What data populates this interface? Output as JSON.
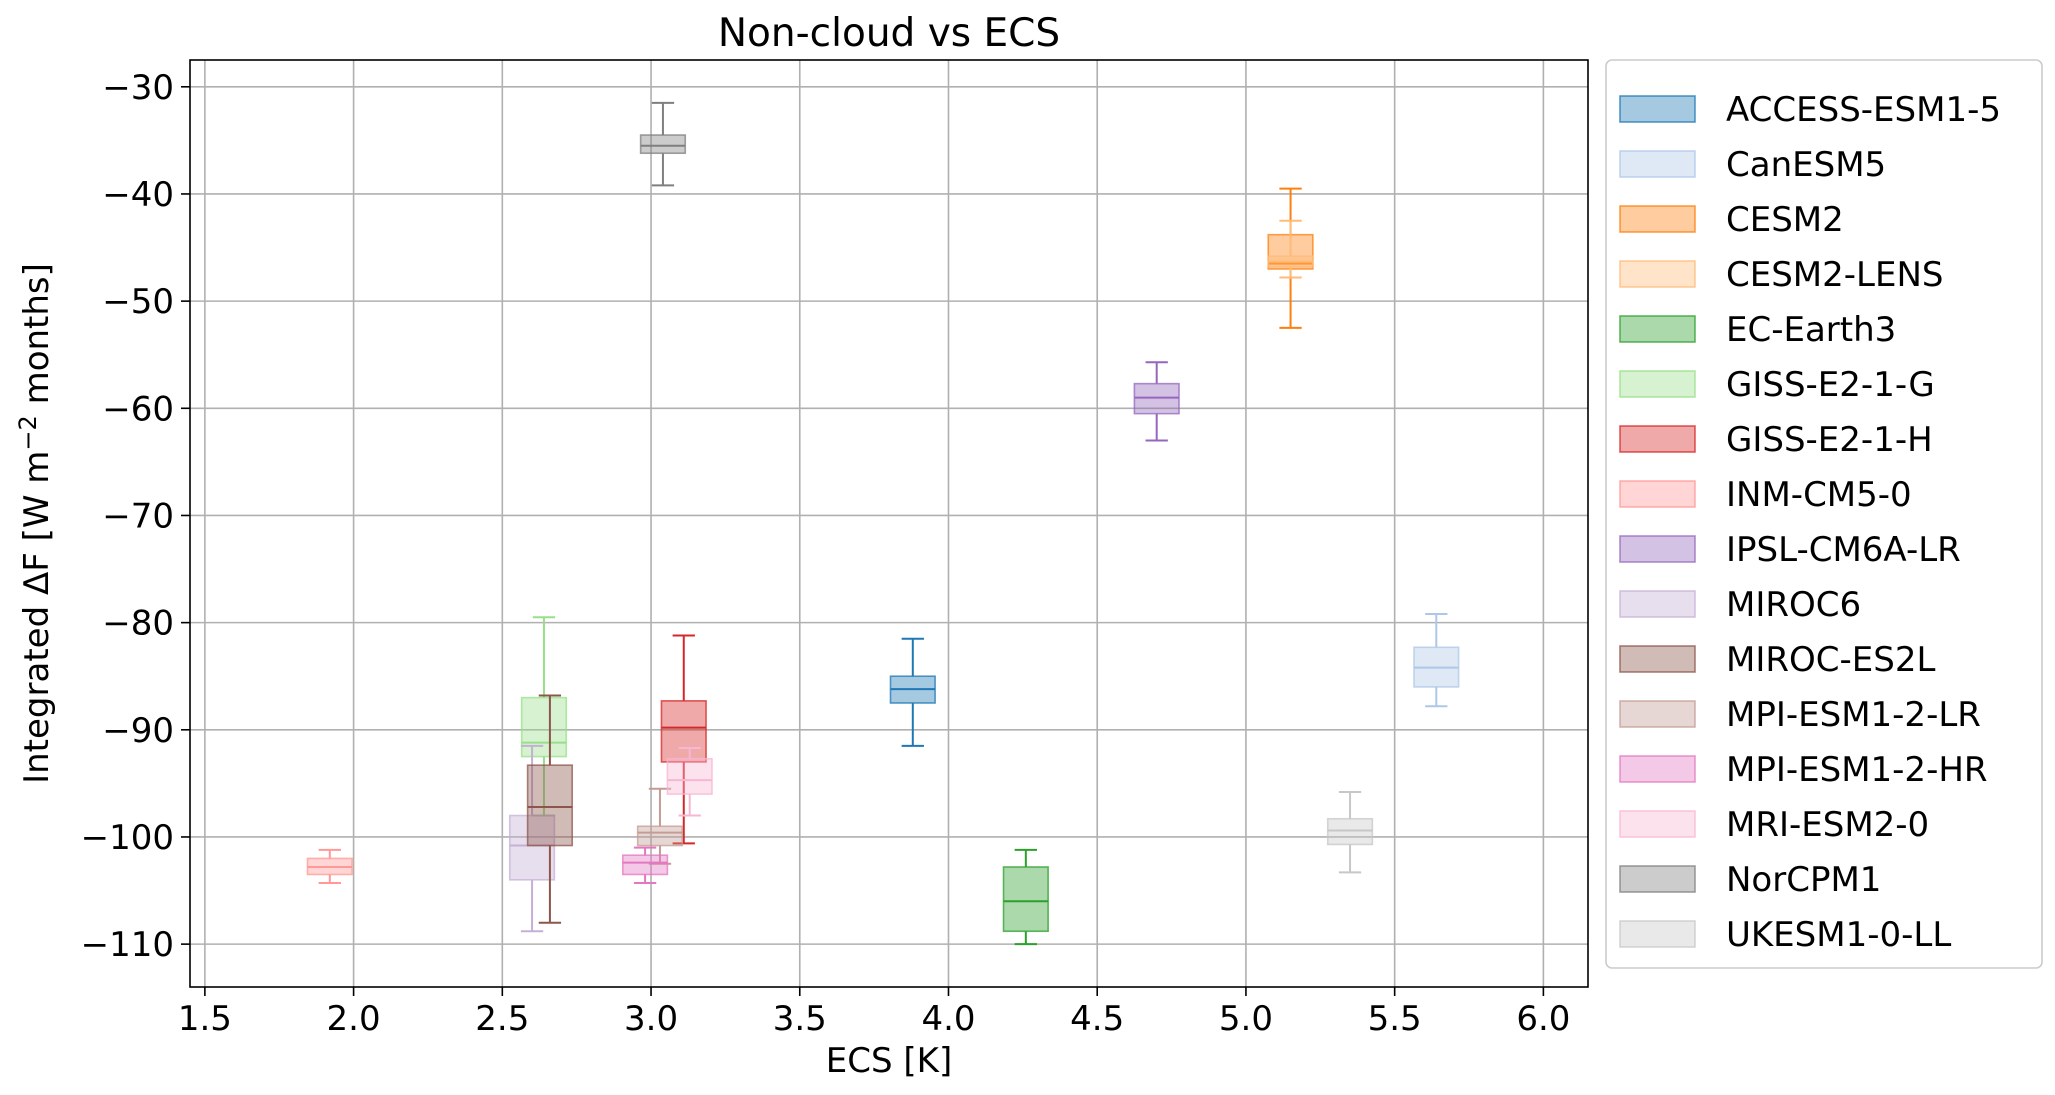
{
  "chart_data": {
    "type": "box",
    "title": "Non-cloud vs ECS",
    "xlabel": "ECS [K]",
    "ylabel_main": "Integrated ΔF [W m",
    "ylabel_sup": "−2",
    "ylabel_tail": " months]",
    "xlim": [
      1.45,
      6.15
    ],
    "ylim": [
      -114,
      -27.5
    ],
    "xticks": [
      1.5,
      2.0,
      2.5,
      3.0,
      3.5,
      4.0,
      4.5,
      5.0,
      5.5,
      6.0
    ],
    "xtick_labels": [
      "1.5",
      "2.0",
      "2.5",
      "3.0",
      "3.5",
      "4.0",
      "4.5",
      "5.0",
      "5.5",
      "6.0"
    ],
    "yticks": [
      -30,
      -40,
      -50,
      -60,
      -70,
      -80,
      -90,
      -100,
      -110
    ],
    "ytick_labels": [
      "−30",
      "−40",
      "−50",
      "−60",
      "−70",
      "−80",
      "−90",
      "−100",
      "−110"
    ],
    "grid": true,
    "legend_position": "outside-right",
    "box_width": 0.15,
    "series": [
      {
        "name": "ACCESS-ESM1-5",
        "color": "#1f77b4",
        "x": 3.88,
        "whislo": -91.5,
        "q1": -87.5,
        "med": -86.2,
        "q3": -85.0,
        "whishi": -81.5
      },
      {
        "name": "CanESM5",
        "color": "#aec7e8",
        "x": 5.64,
        "whislo": -87.8,
        "q1": -86.0,
        "med": -84.2,
        "q3": -82.3,
        "whishi": -79.2
      },
      {
        "name": "CESM2",
        "color": "#ff7f0e",
        "x": 5.15,
        "whislo": -52.5,
        "q1": -47.0,
        "med": -46.5,
        "q3": -43.8,
        "whishi": -39.5
      },
      {
        "name": "CESM2-LENS",
        "color": "#ffbb78",
        "x": 5.15,
        "whislo": -47.8,
        "q1": -46.8,
        "med": -46.3,
        "q3": -45.8,
        "whishi": -42.5
      },
      {
        "name": "EC-Earth3",
        "color": "#2ca02c",
        "x": 4.26,
        "whislo": -110.0,
        "q1": -108.8,
        "med": -106.0,
        "q3": -102.8,
        "whishi": -101.2
      },
      {
        "name": "GISS-E2-1-G",
        "color": "#98df8a",
        "x": 2.64,
        "whislo": -98.0,
        "q1": -92.5,
        "med": -91.2,
        "q3": -87.0,
        "whishi": -79.5
      },
      {
        "name": "GISS-E2-1-H",
        "color": "#d62728",
        "x": 3.11,
        "whislo": -100.6,
        "q1": -93.0,
        "med": -89.8,
        "q3": -87.3,
        "whishi": -81.2
      },
      {
        "name": "INM-CM5-0",
        "color": "#ff9896",
        "x": 1.92,
        "whislo": -104.3,
        "q1": -103.5,
        "med": -102.8,
        "q3": -102.0,
        "whishi": -101.2
      },
      {
        "name": "IPSL-CM6A-LR",
        "color": "#9467bd",
        "x": 4.7,
        "whislo": -63.0,
        "q1": -60.5,
        "med": -59.0,
        "q3": -57.7,
        "whishi": -55.7
      },
      {
        "name": "MIROC6",
        "color": "#c5b0d5",
        "x": 2.6,
        "whislo": -108.8,
        "q1": -104.0,
        "med": -100.8,
        "q3": -98.0,
        "whishi": -91.5
      },
      {
        "name": "MIROC-ES2L",
        "color": "#8c564b",
        "x": 2.66,
        "whislo": -108.0,
        "q1": -100.8,
        "med": -97.2,
        "q3": -93.3,
        "whishi": -86.8
      },
      {
        "name": "MPI-ESM1-2-LR",
        "color": "#c49c94",
        "x": 3.03,
        "whislo": -102.5,
        "q1": -100.8,
        "med": -99.6,
        "q3": -99.0,
        "whishi": -95.5
      },
      {
        "name": "MPI-ESM1-2-HR",
        "color": "#e377c2",
        "x": 2.98,
        "whislo": -104.3,
        "q1": -103.5,
        "med": -102.4,
        "q3": -101.7,
        "whishi": -101.0
      },
      {
        "name": "MRI-ESM2-0",
        "color": "#f7b6d2",
        "x": 3.13,
        "whislo": -98.0,
        "q1": -96.0,
        "med": -94.7,
        "q3": -92.7,
        "whishi": -91.7
      },
      {
        "name": "NorCPM1",
        "color": "#7f7f7f",
        "x": 3.04,
        "whislo": -39.2,
        "q1": -36.2,
        "med": -35.5,
        "q3": -34.5,
        "whishi": -31.5
      },
      {
        "name": "UKESM1-0-LL",
        "color": "#c7c7c7",
        "x": 5.35,
        "whislo": -103.3,
        "q1": -100.7,
        "med": -99.4,
        "q3": -98.3,
        "whishi": -95.8
      }
    ]
  }
}
